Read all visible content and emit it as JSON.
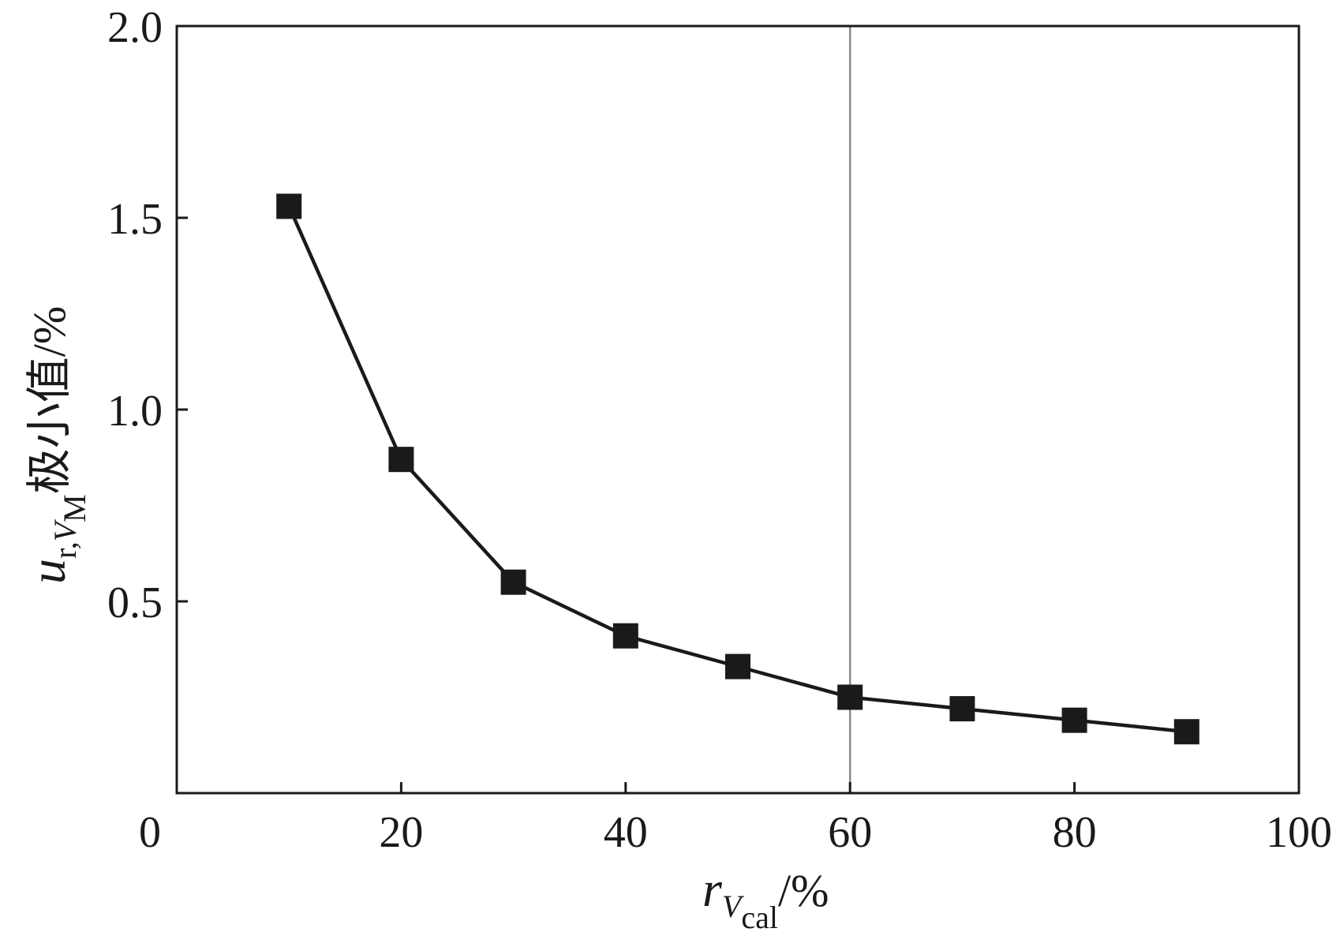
{
  "chart_data": {
    "type": "line",
    "title": "",
    "x": [
      10,
      20,
      30,
      40,
      50,
      60,
      70,
      80,
      90
    ],
    "series": [
      {
        "values": [
          1.53,
          0.87,
          0.55,
          0.41,
          0.33,
          0.25,
          0.22,
          0.19,
          0.16
        ],
        "marker": "square",
        "color": "#1a1a1a"
      }
    ],
    "xlim": [
      0,
      100
    ],
    "ylim": [
      0,
      2.0
    ],
    "x_ticks": [
      0,
      20,
      40,
      60,
      80,
      100
    ],
    "x_tick_labels": [
      "0",
      "20",
      "40",
      "60",
      "80",
      "100"
    ],
    "y_ticks": [
      0.5,
      1.0,
      1.5,
      2.0
    ],
    "y_tick_labels": [
      "0.5",
      "1.0",
      "1.5",
      "2.0"
    ],
    "reference_line": {
      "x": 60,
      "color": "#888888"
    },
    "xlabel": {
      "main": "r",
      "sub": "V",
      "sub2": "cal",
      "rest": "/%"
    },
    "ylabel": {
      "main": "u",
      "sub": "r,",
      "sub_italic": "V",
      "sub2": "M",
      "rest": "极小值/%"
    },
    "grid": false,
    "legend": "none"
  }
}
